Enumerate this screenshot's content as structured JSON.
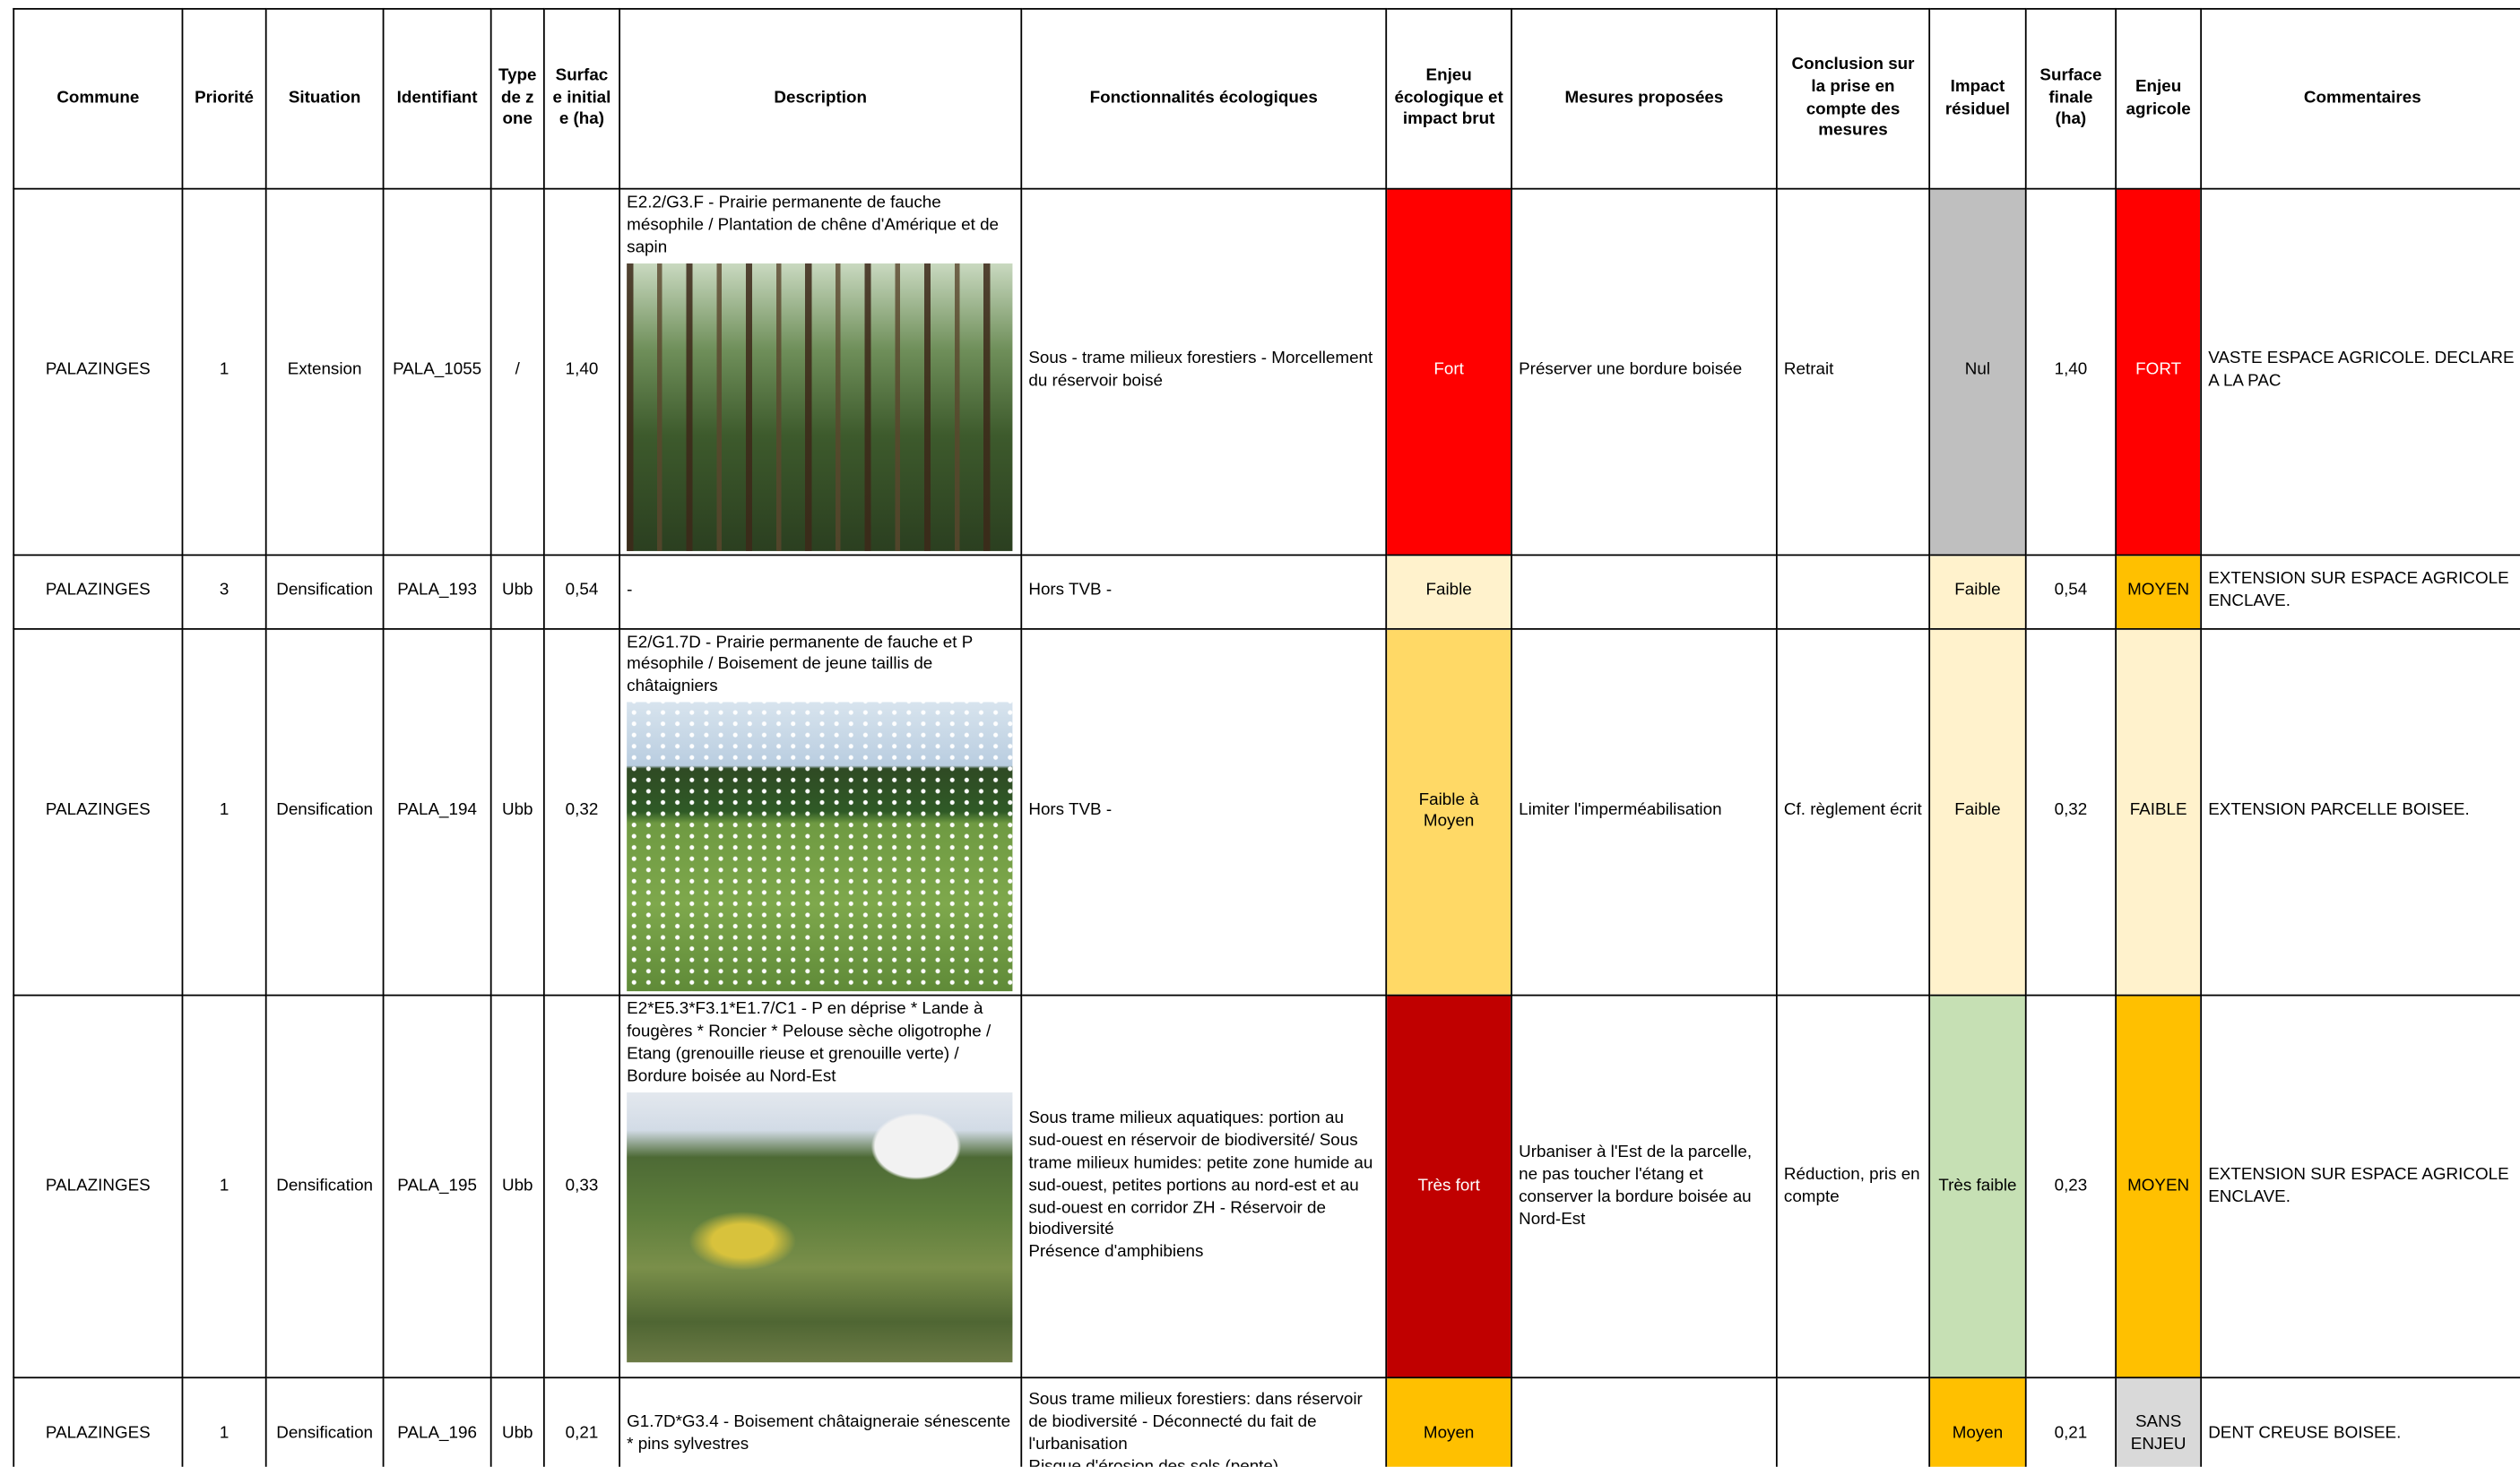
{
  "header": {
    "columns": [
      "Commune",
      "Priorité",
      "Situation",
      "Identifiant",
      "Type de zone",
      "Surface initiale (ha)",
      "Description",
      "Fonctionnalités écologiques",
      "Enjeu écologique et impact brut",
      "Mesures proposées",
      "Conclusion sur la prise en compte des mesures",
      "Impact résiduel",
      "Surface finale (ha)",
      "Enjeu agricole",
      "Commentaires"
    ]
  },
  "table": {
    "rows": [
      [
        "PALAZINGES",
        "1",
        "Extension",
        "PALA_1055",
        "/",
        "1,40",
        "E2.2/G3.F - Prairie permanente de fauche mésophile / Plantation de chêne d'Amérique et de sapin",
        "Sous - trame milieux forestiers - Morcellement du réservoir boisé",
        "Fort",
        "Préserver une bordure boisée",
        "Retrait",
        "Nul",
        "1,40",
        "FORT",
        "VASTE ESPACE AGRICOLE. DECLARE A LA PAC"
      ],
      [
        "PALAZINGES",
        "3",
        "Densification",
        "PALA_193",
        "Ubb",
        "0,54",
        "-",
        "Hors TVB -",
        "Faible",
        null,
        null,
        "Faible",
        "0,54",
        "MOYEN",
        "EXTENSION SUR ESPACE AGRICOLE ENCLAVE."
      ],
      [
        "PALAZINGES",
        "1",
        "Densification",
        "PALA_194",
        "Ubb",
        "0,32",
        "E2/G1.7D - Prairie permanente de fauche et P mésophile / Boisement de jeune taillis de châtaigniers",
        "Hors TVB -",
        "Faible à Moyen",
        "Limiter l'imperméabilisation",
        "Cf. règlement écrit",
        "Faible",
        "0,32",
        "FAIBLE",
        "EXTENSION PARCELLE BOISEE."
      ],
      [
        "PALAZINGES",
        "1",
        "Densification",
        "PALA_195",
        "Ubb",
        "0,33",
        "E2*E5.3*F3.1*E1.7/C1 - P en déprise * Lande à fougères * Roncier * Pelouse sèche oligotrophe / Etang (grenouille rieuse et grenouille verte) / Bordure  boisée au Nord-Est",
        "Sous trame milieux aquatiques: portion au sud-ouest en réservoir de biodiversité/ Sous trame milieux humides: petite zone humide au sud-ouest, petites portions au nord-est et au sud-ouest en corridor ZH - Réservoir de biodiversité\nPrésence d'amphibiens",
        "Très fort",
        "Urbaniser à l'Est de la parcelle, ne pas toucher l'étang et conserver la bordure boisée au Nord-Est",
        "Réduction, pris en compte",
        "Très faible",
        "0,23",
        "MOYEN",
        "EXTENSION SUR ESPACE AGRICOLE ENCLAVE."
      ],
      [
        "PALAZINGES",
        "1",
        "Densification",
        "PALA_196",
        "Ubb",
        "0,21",
        "G1.7D*G3.4 - Boisement châtaigneraie sénescente * pins sylvestres",
        "Sous trame milieux forestiers: dans réservoir de biodiversité - Déconnecté du fait de l'urbanisation\nRisque d'érosion des sols (pente)",
        "Moyen",
        null,
        null,
        "Moyen",
        "0,21",
        "SANS ENJEU",
        "DENT CREUSE BOISEE."
      ]
    ]
  }
}
